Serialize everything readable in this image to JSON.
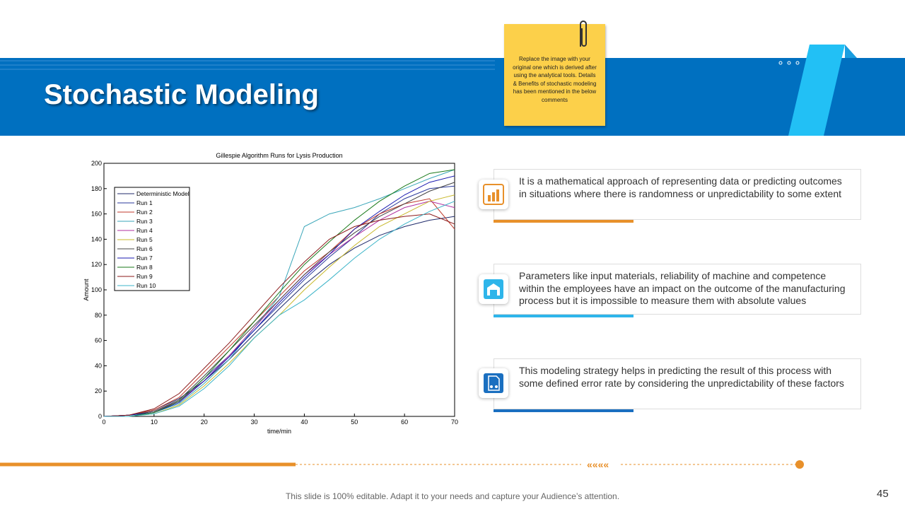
{
  "slide": {
    "title": "Stochastic Modeling",
    "note": "Replace the image with your original one which is derived after using the analytical tools. Details & Benefits of stochastic modeling has been mentioned in the below comments",
    "points": [
      "It is a mathematical approach of representing data or predicting outcomes in situations where there is randomness or unpredictability to some extent",
      "Parameters like input materials, reliability of machine and competence within the employees have an impact on the outcome of the manufacturing process but it is impossible to measure them with absolute values",
      "This modeling strategy helps in predicting the result of this process with some defined error rate by considering the unpredictability of these factors"
    ],
    "footer": "This slide is 100% editable. Adapt it to your needs and capture your Audience’s attention.",
    "page_number": "45"
  },
  "chart_data": {
    "type": "line",
    "title": "Gillespie Algorithm Runs for Lysis Production",
    "x_label": "time/min",
    "y_label": "Amount",
    "x": [
      0,
      5,
      10,
      15,
      20,
      25,
      30,
      35,
      40,
      45,
      50,
      55,
      60,
      65,
      70
    ],
    "xlim": [
      0,
      70
    ],
    "ylim": [
      0,
      200
    ],
    "xticks": [
      0,
      10,
      20,
      30,
      40,
      50,
      60,
      70
    ],
    "yticks": [
      0,
      20,
      40,
      60,
      80,
      100,
      120,
      140,
      160,
      180,
      200
    ],
    "legend": "upper left",
    "series": [
      {
        "name": "Deterministic Model",
        "color": "#1f2a6b",
        "values": [
          0,
          1,
          5,
          14,
          28,
          45,
          65,
          85,
          104,
          120,
          133,
          143,
          150,
          155,
          158
        ]
      },
      {
        "name": "Run 1",
        "color": "#2b3a9b",
        "values": [
          0,
          1,
          4,
          12,
          30,
          48,
          68,
          88,
          108,
          126,
          142,
          160,
          172,
          180,
          182
        ]
      },
      {
        "name": "Run 2",
        "color": "#c0392b",
        "values": [
          0,
          1,
          5,
          15,
          35,
          55,
          75,
          95,
          115,
          130,
          148,
          160,
          168,
          172,
          148
        ]
      },
      {
        "name": "Run 3",
        "color": "#3aa6b9",
        "values": [
          0,
          0,
          3,
          10,
          26,
          45,
          70,
          95,
          150,
          160,
          165,
          172,
          180,
          188,
          195
        ]
      },
      {
        "name": "Run 4",
        "color": "#b0309f",
        "values": [
          0,
          1,
          4,
          12,
          28,
          48,
          70,
          92,
          112,
          128,
          142,
          155,
          165,
          170,
          165
        ]
      },
      {
        "name": "Run 5",
        "color": "#c8b82a",
        "values": [
          0,
          0,
          2,
          9,
          24,
          42,
          62,
          80,
          100,
          118,
          135,
          150,
          160,
          170,
          175
        ]
      },
      {
        "name": "Run 6",
        "color": "#444444",
        "values": [
          0,
          1,
          4,
          13,
          32,
          52,
          72,
          92,
          112,
          130,
          145,
          158,
          168,
          178,
          185
        ]
      },
      {
        "name": "Run 7",
        "color": "#1a1ab0",
        "values": [
          0,
          1,
          3,
          11,
          28,
          47,
          68,
          90,
          110,
          128,
          148,
          162,
          175,
          185,
          190
        ]
      },
      {
        "name": "Run 8",
        "color": "#1a7a1a",
        "values": [
          0,
          0,
          3,
          12,
          30,
          52,
          75,
          98,
          120,
          138,
          155,
          170,
          182,
          192,
          195
        ]
      },
      {
        "name": "Run 9",
        "color": "#8b1a1a",
        "values": [
          0,
          1,
          6,
          18,
          38,
          58,
          80,
          102,
          122,
          140,
          150,
          155,
          158,
          160,
          152
        ]
      },
      {
        "name": "Run 10",
        "color": "#3cb4c8",
        "values": [
          0,
          0,
          2,
          8,
          22,
          40,
          62,
          80,
          92,
          108,
          125,
          140,
          152,
          162,
          170
        ]
      }
    ]
  }
}
